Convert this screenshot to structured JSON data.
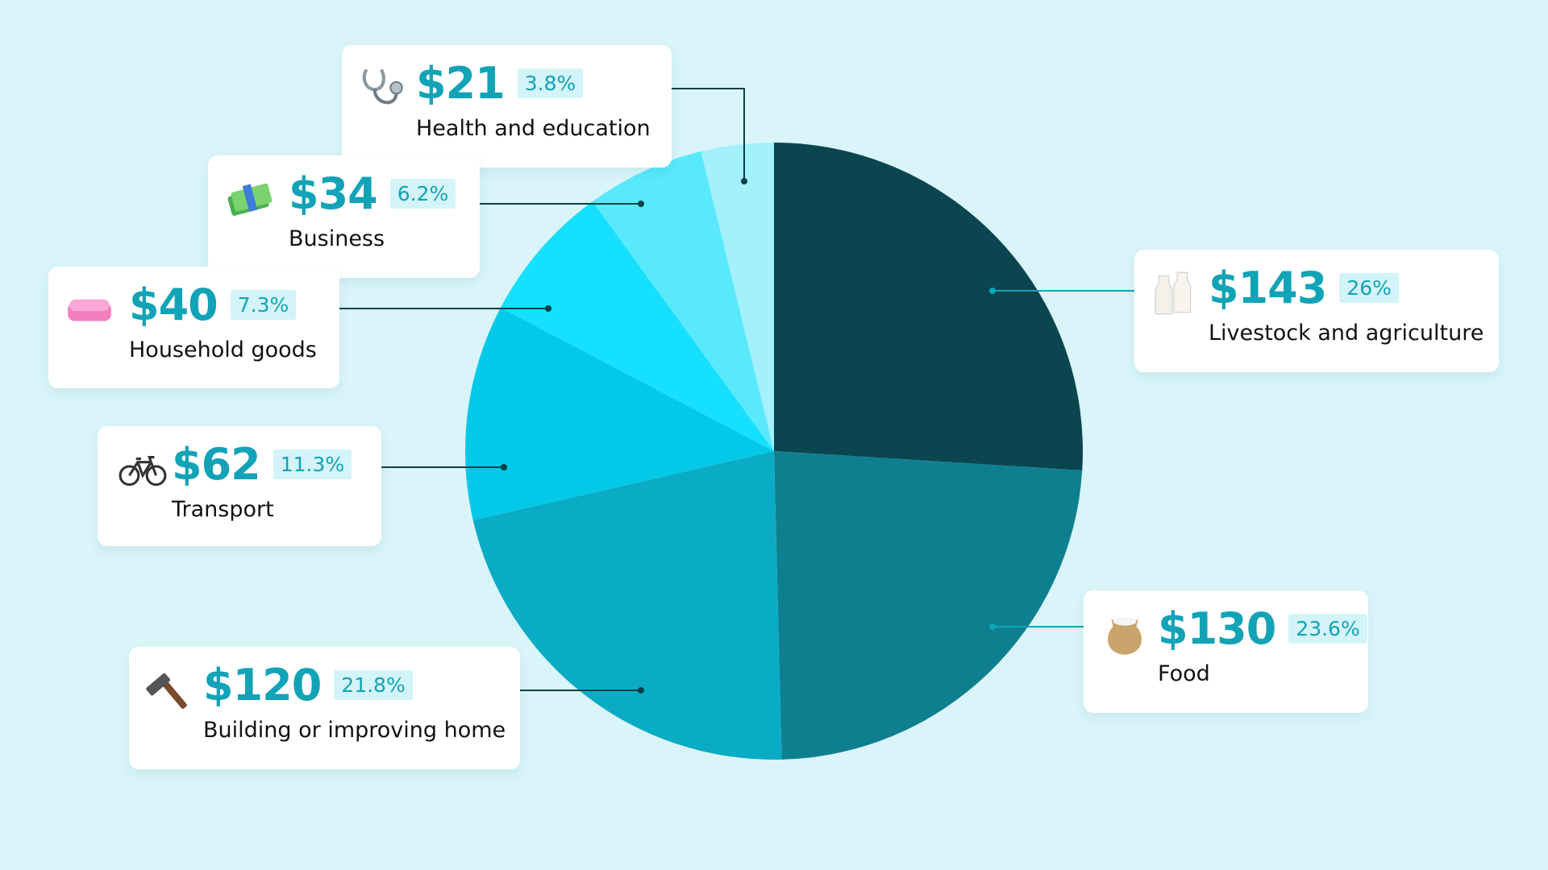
{
  "chart_data": {
    "type": "pie",
    "start": "top",
    "direction": "clockwise",
    "slices": [
      {
        "label": "Livestock and agriculture",
        "amount": "$143",
        "percent_label": "26%",
        "value": 26.0,
        "color": "#0b4650",
        "icon": "milk-bottles-icon"
      },
      {
        "label": "Food",
        "amount": "$130",
        "percent_label": "23.6%",
        "value": 23.6,
        "color": "#0e7f8f",
        "icon": "grain-sack-icon"
      },
      {
        "label": "Building or improving home",
        "amount": "$120",
        "percent_label": "21.8%",
        "value": 21.8,
        "color": "#0aabc5",
        "icon": "hammer-icon"
      },
      {
        "label": "Transport",
        "amount": "$62",
        "percent_label": "11.3%",
        "value": 11.3,
        "color": "#03c9e8",
        "icon": "bicycle-icon"
      },
      {
        "label": "Household goods",
        "amount": "$40",
        "percent_label": "7.3%",
        "value": 7.3,
        "color": "#15e0fe",
        "icon": "soap-icon"
      },
      {
        "label": "Business",
        "amount": "$34",
        "percent_label": "6.2%",
        "value": 6.2,
        "color": "#58e9fd",
        "icon": "money-stack-icon"
      },
      {
        "label": "Health and education",
        "amount": "$21",
        "percent_label": "3.8%",
        "value": 3.8,
        "color": "#a2f1fd",
        "icon": "stethoscope-icon"
      }
    ]
  }
}
